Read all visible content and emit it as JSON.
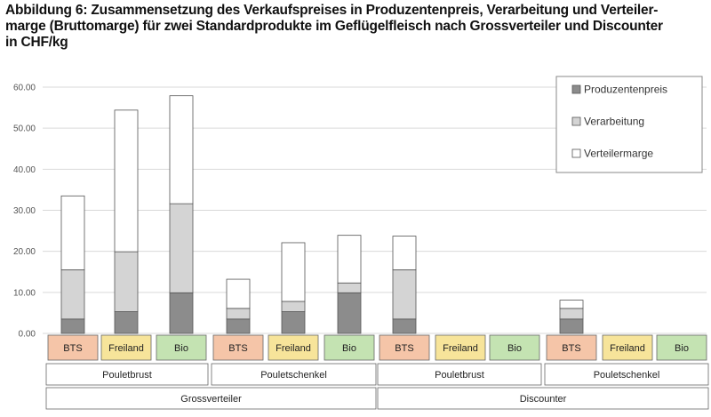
{
  "title": "Abbildung 6: Zusammensetzung des Verkaufspreises in Produzentenpreis, Verarbeitung und Verteilermarge (Bruttomarge) für zwei Standardprodukte im Geflügelfleisch nach Grossverteiler und Discounter in CHF/kg",
  "title_lines": [
    "Abbildung 6: Zusammensetzung des Verkaufspreises in Produzentenpreis, Verarbeitung und Verteiler-",
    "marge (Bruttomarge) für zwei Standardprodukte im Geflügelfleisch nach Grossverteiler und Discounter",
    "in CHF/kg"
  ],
  "chart_data": {
    "type": "bar",
    "stacked": true,
    "ylim": [
      0,
      60
    ],
    "yticks": [
      "0.00",
      "10.00",
      "20.00",
      "30.00",
      "40.00",
      "50.00",
      "60.00"
    ],
    "grid": true,
    "legend_position": "top-right",
    "categories": [
      "BTS",
      "Freiland",
      "Bio",
      "BTS",
      "Freiland",
      "Bio",
      "BTS",
      "Freiland",
      "Bio",
      "BTS",
      "Freiland",
      "Bio"
    ],
    "category_colors": [
      "#f5c5a8",
      "#f7e49a",
      "#c4e3b2"
    ],
    "products": [
      "Pouletbrust",
      "Pouletschenkel",
      "Pouletbrust",
      "Pouletschenkel"
    ],
    "channels": [
      "Grossverteiler",
      "Discounter"
    ],
    "series": [
      {
        "name": "Produzentenpreis",
        "color": "#8c8c8c",
        "values": [
          3.5,
          5.3,
          9.9,
          3.5,
          5.3,
          9.9,
          3.5,
          null,
          null,
          3.5,
          null,
          null
        ]
      },
      {
        "name": "Verarbeitung",
        "color": "#d4d4d4",
        "values": [
          12.0,
          14.6,
          21.7,
          2.6,
          2.5,
          2.4,
          12.0,
          null,
          null,
          2.6,
          null,
          null
        ]
      },
      {
        "name": "Verteilermarge",
        "color": "#ffffff",
        "values": [
          18.0,
          34.5,
          26.3,
          7.1,
          14.3,
          11.6,
          8.2,
          null,
          null,
          2.0,
          null,
          null
        ]
      }
    ]
  }
}
